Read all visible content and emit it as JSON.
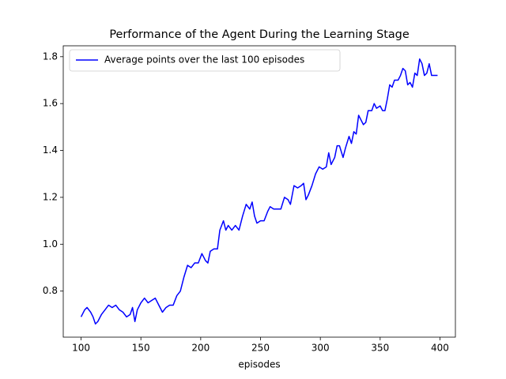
{
  "chart_data": {
    "type": "line",
    "title": "Performance of the Agent During the Learning Stage",
    "x_label": "episodes",
    "x": [
      100,
      103,
      105,
      108,
      110,
      112,
      114,
      117,
      120,
      123,
      126,
      129,
      132,
      135,
      138,
      141,
      143,
      145,
      147,
      150,
      153,
      156,
      159,
      162,
      165,
      168,
      171,
      174,
      177,
      180,
      183,
      186,
      189,
      192,
      195,
      198,
      201,
      204,
      206,
      208,
      211,
      214,
      216,
      219,
      221,
      223,
      226,
      229,
      232,
      235,
      238,
      241,
      243,
      245,
      247,
      250,
      253,
      256,
      258,
      261,
      264,
      267,
      270,
      273,
      275,
      278,
      281,
      284,
      286,
      288,
      290,
      293,
      296,
      299,
      302,
      305,
      307,
      309,
      312,
      314,
      316,
      319,
      321,
      324,
      326,
      328,
      330,
      332,
      334,
      336,
      338,
      340,
      343,
      345,
      347,
      350,
      352,
      354,
      356,
      358,
      360,
      362,
      365,
      367,
      369,
      371,
      373,
      375,
      377,
      379,
      381,
      383,
      385,
      387,
      389,
      391,
      393,
      395,
      398
    ],
    "series": [
      {
        "name": "Average points over the last 100 episodes",
        "color": "#0000ff",
        "values": [
          0.69,
          0.72,
          0.73,
          0.71,
          0.69,
          0.66,
          0.67,
          0.7,
          0.72,
          0.74,
          0.73,
          0.74,
          0.72,
          0.71,
          0.69,
          0.7,
          0.73,
          0.67,
          0.72,
          0.75,
          0.77,
          0.75,
          0.76,
          0.77,
          0.74,
          0.71,
          0.73,
          0.74,
          0.74,
          0.78,
          0.8,
          0.86,
          0.91,
          0.9,
          0.92,
          0.92,
          0.96,
          0.93,
          0.92,
          0.97,
          0.98,
          0.98,
          1.06,
          1.1,
          1.06,
          1.08,
          1.06,
          1.08,
          1.06,
          1.12,
          1.17,
          1.15,
          1.18,
          1.12,
          1.09,
          1.1,
          1.1,
          1.14,
          1.16,
          1.15,
          1.15,
          1.15,
          1.2,
          1.19,
          1.17,
          1.25,
          1.24,
          1.25,
          1.26,
          1.19,
          1.21,
          1.25,
          1.3,
          1.33,
          1.32,
          1.33,
          1.39,
          1.34,
          1.37,
          1.42,
          1.42,
          1.37,
          1.41,
          1.46,
          1.43,
          1.48,
          1.47,
          1.55,
          1.53,
          1.51,
          1.52,
          1.57,
          1.57,
          1.6,
          1.58,
          1.59,
          1.57,
          1.57,
          1.62,
          1.68,
          1.67,
          1.7,
          1.7,
          1.72,
          1.75,
          1.74,
          1.68,
          1.69,
          1.67,
          1.73,
          1.72,
          1.79,
          1.77,
          1.72,
          1.73,
          1.77,
          1.72,
          1.72,
          1.72
        ]
      }
    ],
    "xlim": [
      85.1,
      412.9
    ],
    "xticks": [
      100,
      150,
      200,
      250,
      300,
      350,
      400
    ],
    "ylim": [
      0.6035,
      1.8465
    ],
    "yticks": [
      0.8,
      {
        "value": 1,
        "label": "1.0"
      },
      1.2,
      1.4,
      1.6,
      1.8
    ],
    "grid": false,
    "legend": "upper-left"
  }
}
